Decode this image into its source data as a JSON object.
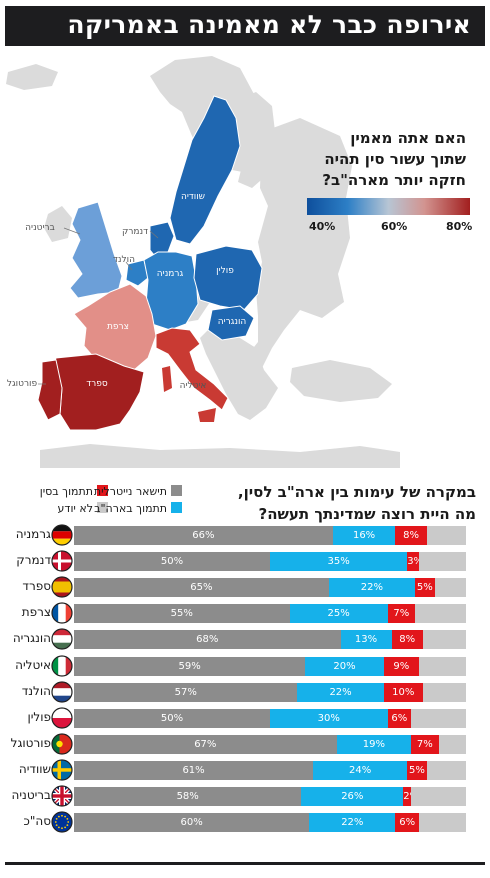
{
  "header": {
    "title": "אירופה כבר לא מאמינה באמריקה"
  },
  "map": {
    "question_lines": [
      "האם אתה מאמין",
      "שתוך עשור סין תהיה",
      "חזקה יותר מארה\"ב?"
    ],
    "legend_labels": [
      "40%",
      "60%",
      "80%"
    ],
    "country_labels": {
      "sweden": "שוודיה",
      "denmark": "דנמרק",
      "britain": "בריטניה",
      "netherlands": "הולנד",
      "germany": "גרמניה",
      "poland": "פולין",
      "hungary": "הונגריה",
      "france": "צרפת",
      "italy": "איטליה",
      "spain": "ספרד",
      "portugal": "פורטוגל"
    },
    "colors": {
      "sweden": "#1f67b1",
      "denmark": "#1f67b1",
      "britain": "#6c9fd8",
      "netherlands": "#2d7fc6",
      "germany": "#2d7fc6",
      "poland": "#1f67b1",
      "hungary": "#1f67b1",
      "france": "#e28f88",
      "italy": "#c93a33",
      "spain": "#a21f1f",
      "portugal": "#a21f1f",
      "land": "#dbdbdb",
      "sea": "#ffffff"
    }
  },
  "survey": {
    "question_lines": [
      "במקרה של עימות בין ארה\"ב לסין,",
      "מה היית רוצה שמדינתך תעשה?"
    ],
    "legend": {
      "neutral": "תישאר נייטרלית",
      "china": "תתמוך בסין",
      "us": "תתמוך בארה\"ב",
      "unknown": "לא יודע"
    }
  },
  "colors": {
    "neutral": "#8c8c8c",
    "us": "#16b1ea",
    "china": "#e2161b",
    "unknown": "#cacaca",
    "header_bg": "#1d1d1f"
  },
  "chart_data": {
    "type": "bar",
    "stacked": true,
    "orientation": "horizontal",
    "categories": [
      "גרמניה",
      "דנמרק",
      "ספרד",
      "צרפת",
      "הונגריה",
      "איטליה",
      "הולנד",
      "פולין",
      "פורטוגל",
      "שוודיה",
      "בריטניה",
      "סה\"כ"
    ],
    "category_flags": [
      "germany",
      "denmark",
      "spain",
      "france",
      "hungary",
      "italy",
      "netherlands",
      "poland",
      "portugal",
      "sweden",
      "britain",
      "eu"
    ],
    "series": [
      {
        "name": "תישאר נייטרלית",
        "values": [
          66,
          50,
          65,
          55,
          68,
          59,
          57,
          50,
          67,
          61,
          58,
          60
        ]
      },
      {
        "name": "תתמוך בארה\"ב",
        "values": [
          16,
          35,
          22,
          25,
          13,
          20,
          22,
          30,
          19,
          24,
          26,
          22
        ]
      },
      {
        "name": "תתמוך בסין",
        "values": [
          8,
          3,
          5,
          7,
          8,
          9,
          10,
          6,
          7,
          5,
          2,
          6
        ]
      }
    ],
    "unit": "%"
  }
}
